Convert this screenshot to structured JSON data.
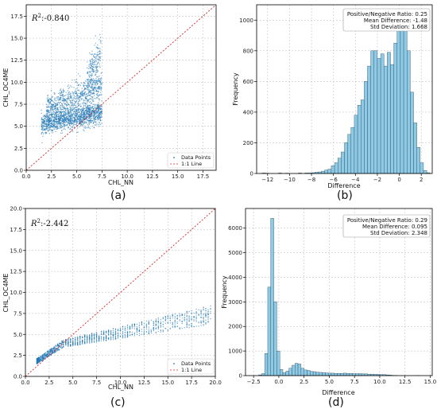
{
  "colors": {
    "scatter": "#1f77b4",
    "identity_line": "#d62728",
    "hist_fill": "#8ecae6",
    "hist_edge": "#2b4a5a",
    "grid": "#b8b8b8"
  },
  "chart_data": [
    {
      "panel": "a",
      "type": "scatter",
      "caption": "(a)",
      "r2_prefix": "R",
      "r2_sup": "2",
      "r2_value": ":-0.840",
      "xlabel": "CHL_NN",
      "ylabel": "CHL_OC4ME",
      "xlim": [
        0,
        18.8
      ],
      "ylim": [
        0,
        18.8
      ],
      "xticks": [
        "0.0",
        "2.5",
        "5.0",
        "7.5",
        "10.0",
        "12.5",
        "15.0",
        "17.5"
      ],
      "yticks": [
        "0.0",
        "2.5",
        "5.0",
        "7.5",
        "10.0",
        "12.5",
        "15.0",
        "17.5"
      ],
      "xtick_values": [
        0,
        2.5,
        5,
        7.5,
        10,
        12.5,
        15,
        17.5
      ],
      "ytick_values": [
        0,
        2.5,
        5,
        7.5,
        10,
        12.5,
        15,
        17.5
      ],
      "grid": true,
      "legend_position": "lower-right",
      "legend": [
        "Data Points",
        "1:1 Line"
      ],
      "clusters": [
        {
          "x_range": [
            1.5,
            7.5
          ],
          "y_center_start": 5.2,
          "y_center_end": 6.6,
          "y_spread": 1.2,
          "n": 1400
        },
        {
          "x_range": [
            2.0,
            7.5
          ],
          "y_center_start": 7.0,
          "y_center_end": 9.5,
          "y_spread": 1.6,
          "n": 700
        },
        {
          "x_range": [
            6.0,
            7.4
          ],
          "y_center_start": 10.0,
          "y_center_end": 13.5,
          "y_spread": 2.5,
          "n": 220
        }
      ]
    },
    {
      "panel": "b",
      "type": "bar",
      "caption": "(b)",
      "xlabel": "Difference",
      "ylabel": "Frequency",
      "xlim": [
        -13,
        3
      ],
      "ylim": [
        0,
        1100
      ],
      "xticks": [
        "−12",
        "−10",
        "−8",
        "−6",
        "−4",
        "−2",
        "0",
        "2"
      ],
      "xtick_values": [
        -12,
        -10,
        -8,
        -6,
        -4,
        -2,
        0,
        2
      ],
      "yticks": [
        "0",
        "200",
        "400",
        "600",
        "800",
        "1000"
      ],
      "ytick_values": [
        0,
        200,
        400,
        600,
        800,
        1000
      ],
      "grid": true,
      "stats": [
        "Positive/Negative Ratio: 0.25",
        "Mean Difference: -1.48",
        "Std Deviation: 1.668"
      ],
      "bin_start": -12.5,
      "bin_width": 0.3,
      "values": [
        3,
        2,
        0,
        0,
        0,
        3,
        0,
        2,
        0,
        0,
        0,
        3,
        0,
        3,
        3,
        5,
        8,
        10,
        15,
        22,
        28,
        50,
        70,
        100,
        140,
        200,
        255,
        300,
        380,
        445,
        480,
        600,
        700,
        800,
        800,
        750,
        780,
        700,
        790,
        710,
        850,
        930,
        1040,
        960,
        800,
        530,
        330,
        170,
        70,
        20,
        5
      ]
    },
    {
      "panel": "c",
      "type": "scatter",
      "caption": "(c)",
      "r2_prefix": "R",
      "r2_sup": "2",
      "r2_value": ":-2.442",
      "xlabel": "CHL_NN",
      "ylabel": "CHL_OC4ME",
      "xlim": [
        0,
        20
      ],
      "ylim": [
        0,
        20
      ],
      "xticks": [
        "0.0",
        "2.5",
        "5.0",
        "7.5",
        "10.0",
        "12.5",
        "15.0",
        "17.5",
        "20.0"
      ],
      "yticks": [
        "0.0",
        "2.5",
        "5.0",
        "7.5",
        "10.0",
        "12.5",
        "15.0",
        "17.5",
        "20.0"
      ],
      "xtick_values": [
        0,
        2.5,
        5,
        7.5,
        10,
        12.5,
        15,
        17.5,
        20
      ],
      "ytick_values": [
        0,
        2.5,
        5,
        7.5,
        10,
        12.5,
        15,
        17.5,
        20
      ],
      "grid": true,
      "legend_position": "lower-right",
      "legend": [
        "Data Points",
        "1:1 Line"
      ],
      "curve": {
        "x_range": [
          1.2,
          19.5
        ],
        "y_at_start": 1.8,
        "y_at_4": 3.9,
        "y_at_end": 7.3,
        "y_spread_start": 0.4,
        "y_spread_end": 1.4,
        "n": 1300
      }
    },
    {
      "panel": "d",
      "type": "bar",
      "caption": "(d)",
      "xlabel": "Difference",
      "ylabel": "Frequency",
      "xlim": [
        -3.3,
        15.2
      ],
      "ylim": [
        0,
        6800
      ],
      "xticks": [
        "−2.5",
        "0.0",
        "2.5",
        "5.0",
        "7.5",
        "10.0",
        "12.5",
        "15.0"
      ],
      "xtick_values": [
        -2.5,
        0,
        2.5,
        5,
        7.5,
        10,
        12.5,
        15
      ],
      "yticks": [
        "0",
        "1000",
        "2000",
        "3000",
        "4000",
        "5000",
        "6000"
      ],
      "ytick_values": [
        0,
        1000,
        2000,
        3000,
        4000,
        5000,
        6000
      ],
      "grid": true,
      "stats": [
        "Positive/Negative Ratio: 0.29",
        "Mean Difference: 0.095",
        "Std Deviation: 2.348"
      ],
      "bin_start": -2.0,
      "bin_width": 0.3,
      "values": [
        30,
        80,
        900,
        3600,
        6400,
        3000,
        1000,
        250,
        120,
        180,
        300,
        420,
        500,
        470,
        300,
        230,
        210,
        170,
        160,
        140,
        130,
        120,
        110,
        100,
        100,
        90,
        90,
        90,
        100,
        90,
        90,
        80,
        80,
        80,
        70,
        70,
        60,
        60,
        50,
        50,
        40,
        40,
        30,
        20,
        10,
        5,
        0,
        0,
        0,
        0,
        0,
        0,
        3
      ]
    }
  ]
}
